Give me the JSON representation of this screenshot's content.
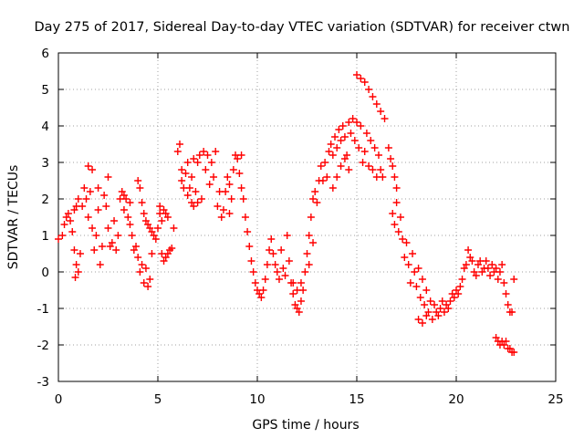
{
  "chart_data": {
    "type": "scatter",
    "title": "Day 275 of 2017, Sidereal Day-to-day VTEC variation (SDTVAR) for receiver ctwn",
    "xlabel": "GPS time / hours",
    "ylabel": "SDTVAR / TECUs",
    "xlim": [
      0,
      25
    ],
    "ylim": [
      -3,
      6
    ],
    "xticks": [
      "0",
      "5",
      "10",
      "15",
      "20",
      "25"
    ],
    "yticks": [
      "-3",
      "-2",
      "-1",
      "0",
      "1",
      "2",
      "3",
      "4",
      "5",
      "6"
    ],
    "grid": true,
    "marker": "+",
    "color": "#ff0000",
    "series": [
      {
        "name": "SDTVAR",
        "points": [
          [
            0.0,
            0.9
          ],
          [
            0.2,
            1.0
          ],
          [
            0.3,
            1.3
          ],
          [
            0.4,
            1.5
          ],
          [
            0.5,
            1.6
          ],
          [
            0.6,
            1.4
          ],
          [
            0.7,
            1.1
          ],
          [
            0.8,
            1.7
          ],
          [
            0.9,
            1.8
          ],
          [
            1.0,
            2.0
          ],
          [
            0.8,
            0.6
          ],
          [
            0.9,
            0.2
          ],
          [
            1.0,
            0.0
          ],
          [
            0.85,
            -0.15
          ],
          [
            1.1,
            0.5
          ],
          [
            1.2,
            1.8
          ],
          [
            1.3,
            2.3
          ],
          [
            1.4,
            2.0
          ],
          [
            1.5,
            1.5
          ],
          [
            1.5,
            2.9
          ],
          [
            1.6,
            2.2
          ],
          [
            1.7,
            1.2
          ],
          [
            1.7,
            2.8
          ],
          [
            1.8,
            0.6
          ],
          [
            1.9,
            1.0
          ],
          [
            2.0,
            2.3
          ],
          [
            2.0,
            1.7
          ],
          [
            2.1,
            0.2
          ],
          [
            2.2,
            0.7
          ],
          [
            2.3,
            2.1
          ],
          [
            2.4,
            1.8
          ],
          [
            2.5,
            1.2
          ],
          [
            2.5,
            2.6
          ],
          [
            2.6,
            0.7
          ],
          [
            2.7,
            0.8
          ],
          [
            2.8,
            1.4
          ],
          [
            2.9,
            0.6
          ],
          [
            3.0,
            1.0
          ],
          [
            3.1,
            2.0
          ],
          [
            3.2,
            2.2
          ],
          [
            3.3,
            1.7
          ],
          [
            3.4,
            2.0
          ],
          [
            3.5,
            1.5
          ],
          [
            3.6,
            1.3
          ],
          [
            3.7,
            1.0
          ],
          [
            3.8,
            0.6
          ],
          [
            3.9,
            0.7
          ],
          [
            4.0,
            0.4
          ],
          [
            4.0,
            2.5
          ],
          [
            4.1,
            0.0
          ],
          [
            4.1,
            2.3
          ],
          [
            4.2,
            0.2
          ],
          [
            4.2,
            1.9
          ],
          [
            4.3,
            -0.3
          ],
          [
            4.3,
            1.6
          ],
          [
            4.4,
            0.1
          ],
          [
            4.4,
            1.4
          ],
          [
            4.5,
            -0.4
          ],
          [
            4.5,
            1.3
          ],
          [
            4.6,
            -0.2
          ],
          [
            4.6,
            1.2
          ],
          [
            4.7,
            0.5
          ],
          [
            4.7,
            1.1
          ],
          [
            4.8,
            1.0
          ],
          [
            4.9,
            0.9
          ],
          [
            5.0,
            1.2
          ],
          [
            5.1,
            1.6
          ],
          [
            5.1,
            1.8
          ],
          [
            5.2,
            1.4
          ],
          [
            5.3,
            1.7
          ],
          [
            5.4,
            1.6
          ],
          [
            5.5,
            1.5
          ],
          [
            5.2,
            0.5
          ],
          [
            5.3,
            0.3
          ],
          [
            5.4,
            0.4
          ],
          [
            5.5,
            0.5
          ],
          [
            5.6,
            0.6
          ],
          [
            5.7,
            0.65
          ],
          [
            5.8,
            1.2
          ],
          [
            6.0,
            3.3
          ],
          [
            6.1,
            3.5
          ],
          [
            6.2,
            2.8
          ],
          [
            6.2,
            2.5
          ],
          [
            6.3,
            2.3
          ],
          [
            6.4,
            2.7
          ],
          [
            6.5,
            2.1
          ],
          [
            6.5,
            3.0
          ],
          [
            6.6,
            2.3
          ],
          [
            6.7,
            1.9
          ],
          [
            6.7,
            2.6
          ],
          [
            6.8,
            1.8
          ],
          [
            6.9,
            2.2
          ],
          [
            7.0,
            1.9
          ],
          [
            7.0,
            3.0
          ],
          [
            7.1,
            3.2
          ],
          [
            7.2,
            2.0
          ],
          [
            7.3,
            3.3
          ],
          [
            7.4,
            2.8
          ],
          [
            7.5,
            3.2
          ],
          [
            7.6,
            2.4
          ],
          [
            7.7,
            3.0
          ],
          [
            7.8,
            2.6
          ],
          [
            7.9,
            3.3
          ],
          [
            8.0,
            1.8
          ],
          [
            8.1,
            2.2
          ],
          [
            8.2,
            1.5
          ],
          [
            8.3,
            1.7
          ],
          [
            8.4,
            2.2
          ],
          [
            8.5,
            2.6
          ],
          [
            8.6,
            2.4
          ],
          [
            8.7,
            2.0
          ],
          [
            8.8,
            2.8
          ],
          [
            8.9,
            3.2
          ],
          [
            9.0,
            3.1
          ],
          [
            9.1,
            2.7
          ],
          [
            9.2,
            2.3
          ],
          [
            9.3,
            2.0
          ],
          [
            9.4,
            1.5
          ],
          [
            9.5,
            1.1
          ],
          [
            9.6,
            0.7
          ],
          [
            9.7,
            0.3
          ],
          [
            9.8,
            0.0
          ],
          [
            9.9,
            -0.3
          ],
          [
            10.0,
            -0.5
          ],
          [
            10.1,
            -0.6
          ],
          [
            10.2,
            -0.7
          ],
          [
            10.3,
            -0.5
          ],
          [
            10.4,
            -0.2
          ],
          [
            10.5,
            0.2
          ],
          [
            10.6,
            0.6
          ],
          [
            10.7,
            0.9
          ],
          [
            10.8,
            0.5
          ],
          [
            10.9,
            0.2
          ],
          [
            11.0,
            0.0
          ],
          [
            11.1,
            -0.2
          ],
          [
            11.2,
            0.6
          ],
          [
            11.3,
            0.1
          ],
          [
            11.4,
            -0.1
          ],
          [
            11.5,
            1.0
          ],
          [
            11.6,
            0.3
          ],
          [
            11.7,
            -0.3
          ],
          [
            11.8,
            -0.6
          ],
          [
            11.9,
            -0.9
          ],
          [
            12.0,
            -1.0
          ],
          [
            12.1,
            -1.1
          ],
          [
            12.2,
            -0.8
          ],
          [
            12.3,
            -0.5
          ],
          [
            12.4,
            0.0
          ],
          [
            12.5,
            0.5
          ],
          [
            12.6,
            1.0
          ],
          [
            12.7,
            1.5
          ],
          [
            12.8,
            2.0
          ],
          [
            12.9,
            2.2
          ],
          [
            13.0,
            1.9
          ],
          [
            13.1,
            2.5
          ],
          [
            13.2,
            2.9
          ],
          [
            13.3,
            2.5
          ],
          [
            13.4,
            3.0
          ],
          [
            13.5,
            2.6
          ],
          [
            13.6,
            3.3
          ],
          [
            13.7,
            3.5
          ],
          [
            13.8,
            3.2
          ],
          [
            13.9,
            3.7
          ],
          [
            14.0,
            3.4
          ],
          [
            14.1,
            3.9
          ],
          [
            14.2,
            3.6
          ],
          [
            14.3,
            4.0
          ],
          [
            14.4,
            3.7
          ],
          [
            14.5,
            3.2
          ],
          [
            14.6,
            4.1
          ],
          [
            14.7,
            3.8
          ],
          [
            14.8,
            4.2
          ],
          [
            14.9,
            3.6
          ],
          [
            15.0,
            4.1
          ],
          [
            15.1,
            3.4
          ],
          [
            15.2,
            4.0
          ],
          [
            15.3,
            3.0
          ],
          [
            15.4,
            3.3
          ],
          [
            15.5,
            3.8
          ],
          [
            15.6,
            2.9
          ],
          [
            15.7,
            3.6
          ],
          [
            15.8,
            2.8
          ],
          [
            15.9,
            3.4
          ],
          [
            16.0,
            2.6
          ],
          [
            16.1,
            3.2
          ],
          [
            16.2,
            2.8
          ],
          [
            16.3,
            2.6
          ],
          [
            15.0,
            5.4
          ],
          [
            15.2,
            5.3
          ],
          [
            15.4,
            5.2
          ],
          [
            15.6,
            5.0
          ],
          [
            15.8,
            4.8
          ],
          [
            16.0,
            4.6
          ],
          [
            16.2,
            4.4
          ],
          [
            16.4,
            4.2
          ],
          [
            16.6,
            3.4
          ],
          [
            16.7,
            3.1
          ],
          [
            16.8,
            2.9
          ],
          [
            16.9,
            2.6
          ],
          [
            17.0,
            2.3
          ],
          [
            16.8,
            1.6
          ],
          [
            16.9,
            1.3
          ],
          [
            17.0,
            1.9
          ],
          [
            17.1,
            1.1
          ],
          [
            17.2,
            1.5
          ],
          [
            17.3,
            0.9
          ],
          [
            17.4,
            0.4
          ],
          [
            17.5,
            0.8
          ],
          [
            17.6,
            0.2
          ],
          [
            17.7,
            -0.3
          ],
          [
            17.8,
            0.5
          ],
          [
            17.9,
            0.0
          ],
          [
            18.0,
            -0.4
          ],
          [
            18.1,
            0.1
          ],
          [
            18.2,
            -0.7
          ],
          [
            18.3,
            -0.2
          ],
          [
            18.4,
            -0.9
          ],
          [
            18.5,
            -0.5
          ],
          [
            18.6,
            -1.1
          ],
          [
            18.7,
            -0.8
          ],
          [
            18.8,
            -1.3
          ],
          [
            18.9,
            -0.9
          ],
          [
            19.0,
            -1.1
          ],
          [
            19.1,
            -1.2
          ],
          [
            19.2,
            -1.0
          ],
          [
            19.3,
            -0.8
          ],
          [
            19.4,
            -1.1
          ],
          [
            19.5,
            -0.9
          ],
          [
            19.6,
            -1.0
          ],
          [
            19.7,
            -0.8
          ],
          [
            19.8,
            -0.6
          ],
          [
            19.9,
            -0.7
          ],
          [
            20.0,
            -0.5
          ],
          [
            20.1,
            -0.6
          ],
          [
            20.2,
            -0.4
          ],
          [
            20.3,
            -0.2
          ],
          [
            20.4,
            0.1
          ],
          [
            20.5,
            0.2
          ],
          [
            20.6,
            0.6
          ],
          [
            20.7,
            0.4
          ],
          [
            20.8,
            0.3
          ],
          [
            20.9,
            0.0
          ],
          [
            21.0,
            -0.1
          ],
          [
            21.1,
            0.2
          ],
          [
            21.2,
            0.3
          ],
          [
            21.3,
            0.0
          ],
          [
            21.4,
            0.1
          ],
          [
            21.5,
            0.3
          ],
          [
            21.6,
            0.1
          ],
          [
            21.7,
            -0.1
          ],
          [
            21.8,
            0.2
          ],
          [
            21.9,
            0.0
          ],
          [
            22.0,
            0.1
          ],
          [
            22.1,
            -0.2
          ],
          [
            22.2,
            0.0
          ],
          [
            22.3,
            0.2
          ],
          [
            22.4,
            -0.3
          ],
          [
            22.5,
            -0.6
          ],
          [
            22.6,
            -0.9
          ],
          [
            22.7,
            -1.1
          ],
          [
            22.8,
            -1.1
          ],
          [
            22.9,
            -0.2
          ],
          [
            22.0,
            -1.8
          ],
          [
            22.1,
            -1.9
          ],
          [
            22.2,
            -2.0
          ],
          [
            22.3,
            -1.9
          ],
          [
            22.4,
            -2.0
          ],
          [
            22.5,
            -1.9
          ],
          [
            22.6,
            -2.1
          ],
          [
            22.7,
            -2.1
          ],
          [
            22.8,
            -2.2
          ],
          [
            22.9,
            -2.2
          ],
          [
            18.1,
            -1.3
          ],
          [
            18.3,
            -1.4
          ],
          [
            18.5,
            -1.2
          ],
          [
            13.8,
            2.3
          ],
          [
            14.0,
            2.6
          ],
          [
            14.2,
            2.9
          ],
          [
            14.4,
            3.1
          ],
          [
            14.6,
            2.8
          ],
          [
            11.8,
            -0.3
          ],
          [
            12.0,
            -0.5
          ],
          [
            12.2,
            -0.3
          ],
          [
            12.6,
            0.2
          ],
          [
            12.8,
            0.8
          ],
          [
            9.2,
            3.2
          ],
          [
            8.6,
            1.6
          ],
          [
            6.8,
            3.1
          ],
          [
            3.3,
            2.1
          ],
          [
            3.6,
            1.9
          ]
        ]
      }
    ]
  }
}
